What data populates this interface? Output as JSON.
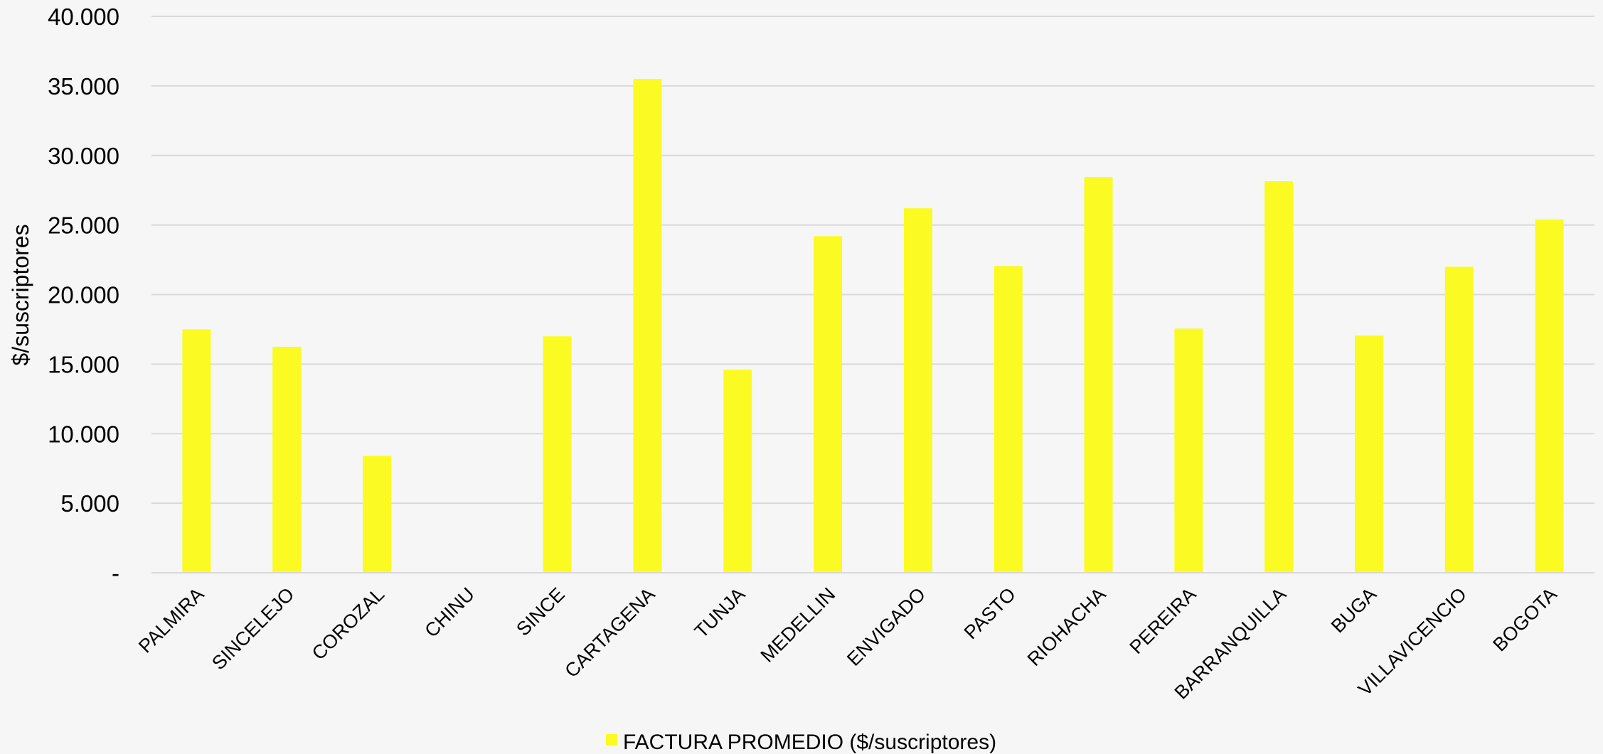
{
  "chart_data": {
    "type": "bar",
    "ylabel": "$/suscriptores",
    "ylim": [
      0,
      40000
    ],
    "yticks": [
      {
        "value": 0,
        "label": "-"
      },
      {
        "value": 5000,
        "label": "5.000"
      },
      {
        "value": 10000,
        "label": "10.000"
      },
      {
        "value": 15000,
        "label": "15.000"
      },
      {
        "value": 20000,
        "label": "20.000"
      },
      {
        "value": 25000,
        "label": "25.000"
      },
      {
        "value": 30000,
        "label": "30.000"
      },
      {
        "value": 35000,
        "label": "35.000"
      },
      {
        "value": 40000,
        "label": "40.000"
      }
    ],
    "categories": [
      "PALMIRA",
      "SINCELEJO",
      "COROZAL",
      "CHINU",
      "SINCE",
      "CARTAGENA",
      "TUNJA",
      "MEDELLIN",
      "ENVIGADO",
      "PASTO",
      "RIOHACHA",
      "PEREIRA",
      "BARRANQUILLA",
      "BUGA",
      "VILLAVICENCIO",
      "BOGOTA"
    ],
    "series": [
      {
        "name": "FACTURA PROMEDIO ($/suscriptores)",
        "color": "#fbfb23",
        "values": [
          17500,
          16250,
          8400,
          0,
          17000,
          35500,
          14600,
          24200,
          26200,
          22050,
          28450,
          17550,
          28150,
          17050,
          22000,
          25400
        ]
      }
    ],
    "grid": true,
    "legend": "bottom-center"
  }
}
